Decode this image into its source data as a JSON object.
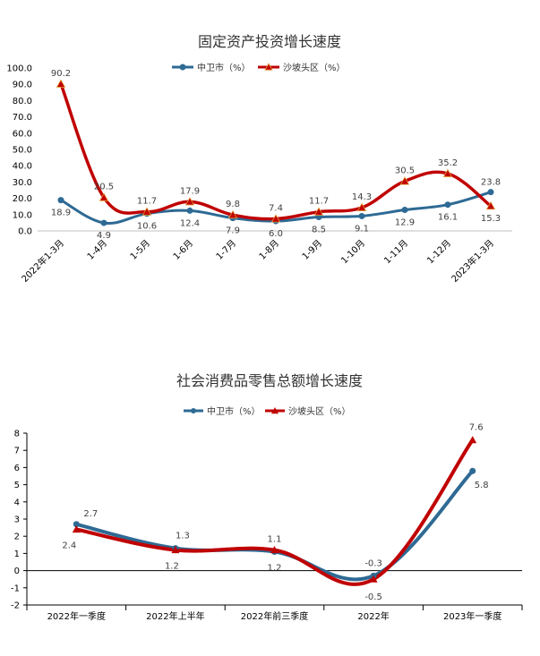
{
  "chart_data": [
    {
      "type": "line",
      "title": "固定资产投资增长速度",
      "categories": [
        "2022年1-3月",
        "1-4月",
        "1-5月",
        "1-6月",
        "1-7月",
        "1-8月",
        "1-9月",
        "1-10月",
        "1-11月",
        "1-12月",
        "2023年1-3月"
      ],
      "series": [
        {
          "name": "中卫市（%）",
          "color": "#2e6a94",
          "values": [
            18.9,
            4.9,
            10.6,
            12.4,
            7.9,
            6.0,
            8.5,
            9.1,
            12.9,
            16.1,
            23.8
          ]
        },
        {
          "name": "沙坡头区（%）",
          "color": "#c00000",
          "values": [
            90.2,
            20.5,
            11.7,
            17.9,
            9.8,
            7.4,
            11.7,
            14.3,
            30.5,
            35.2,
            15.3
          ]
        }
      ],
      "ylim": [
        0,
        100
      ],
      "yticks": [
        "100.0",
        "90.0",
        "80.0",
        "70.0",
        "60.0",
        "50.0",
        "40.0",
        "30.0",
        "20.0",
        "10.0",
        "0.0"
      ],
      "data_labels": {
        "中卫市（%）": [
          "18.9",
          "4.9",
          "10.6",
          "12.4",
          "7.9",
          "6.0",
          "8.5",
          "9.1",
          "12.9",
          "16.1",
          "23.8"
        ],
        "沙坡头区（%）": [
          "90.2",
          "20.5",
          "11.7",
          "17.9",
          "9.8",
          "7.4",
          "11.7",
          "14.3",
          "30.5",
          "35.2",
          "15.3"
        ]
      },
      "grid": false,
      "legend": "top"
    },
    {
      "type": "line",
      "title": "社会消费品零售总额增长速度",
      "categories": [
        "2022年一季度",
        "2022年上半年",
        "2022年前三季度",
        "2022年",
        "2023年一季度"
      ],
      "series": [
        {
          "name": "中卫市（%）",
          "color": "#2e6a94",
          "values": [
            2.7,
            1.3,
            1.1,
            -0.3,
            5.8
          ]
        },
        {
          "name": "沙坡头区（%）",
          "color": "#c00000",
          "values": [
            2.4,
            1.2,
            1.2,
            -0.5,
            7.6
          ]
        }
      ],
      "ylim": [
        -2,
        8
      ],
      "yticks": [
        "8",
        "7",
        "6",
        "5",
        "4",
        "3",
        "2",
        "1",
        "0",
        "-1",
        "-2"
      ],
      "data_labels": {
        "中卫市（%）": [
          "2.7",
          "1.3",
          "1.1",
          "-0.3",
          "5.8"
        ],
        "沙坡头区（%）": [
          "2.4",
          "1.2",
          "1.2",
          "-0.5",
          "7.6"
        ]
      },
      "grid": false,
      "legend": "top"
    }
  ]
}
